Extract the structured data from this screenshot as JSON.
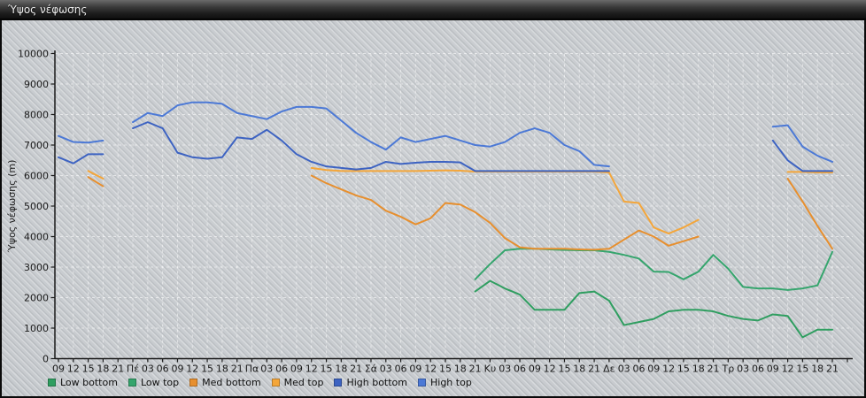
{
  "title": "Ύψος νέφωσης",
  "chart_data": {
    "type": "line",
    "title": "Ύψος νέφωσης",
    "ylabel": "Ύψος νέφωσης (m)",
    "ylim": [
      0,
      10000
    ],
    "ytick_step": 1000,
    "grid": true,
    "legend_position": "bottom-left",
    "x_labels": [
      "09",
      "12",
      "15",
      "18",
      "21",
      "Πέ",
      "03",
      "06",
      "09",
      "12",
      "15",
      "18",
      "21",
      "Πα",
      "03",
      "06",
      "09",
      "12",
      "15",
      "18",
      "21",
      "Σά",
      "03",
      "06",
      "09",
      "12",
      "15",
      "18",
      "21",
      "Κυ",
      "03",
      "06",
      "09",
      "12",
      "15",
      "18",
      "21",
      "Δε",
      "03",
      "06",
      "09",
      "12",
      "15",
      "18",
      "21",
      "Τρ",
      "03",
      "06",
      "09",
      "12",
      "15",
      "18",
      "21"
    ],
    "series": [
      {
        "name": "Low bottom",
        "color": "#2f9e60",
        "values": [
          null,
          null,
          null,
          null,
          null,
          null,
          null,
          null,
          null,
          null,
          null,
          null,
          null,
          null,
          null,
          null,
          null,
          null,
          null,
          null,
          null,
          null,
          null,
          null,
          null,
          null,
          null,
          null,
          2200,
          2550,
          2300,
          2100,
          1600,
          1600,
          1600,
          2150,
          2200,
          1900,
          1100,
          1200,
          1300,
          1550,
          1600,
          1600,
          1550,
          1400,
          1300,
          1250,
          1450,
          1400,
          700,
          950,
          950
        ]
      },
      {
        "name": "Low top",
        "color": "#35a56d",
        "values": [
          null,
          null,
          null,
          null,
          null,
          null,
          null,
          null,
          null,
          null,
          null,
          null,
          null,
          null,
          null,
          null,
          null,
          null,
          null,
          null,
          null,
          null,
          null,
          null,
          null,
          null,
          null,
          null,
          2600,
          3100,
          3550,
          3600,
          3600,
          3580,
          3560,
          3550,
          3550,
          3500,
          3400,
          3280,
          2850,
          2840,
          2600,
          2850,
          3400,
          2950,
          2350,
          2300,
          2300,
          2250,
          2300,
          2400,
          3500
        ]
      },
      {
        "name": "Med bottom",
        "color": "#e78f2e",
        "values": [
          null,
          null,
          5950,
          5650,
          null,
          null,
          null,
          null,
          null,
          null,
          null,
          null,
          null,
          null,
          null,
          null,
          null,
          6000,
          5750,
          5550,
          5350,
          5200,
          4850,
          4650,
          4400,
          4600,
          5100,
          5050,
          4800,
          4450,
          3950,
          3650,
          3600,
          3600,
          3600,
          3580,
          3570,
          3600,
          3900,
          4200,
          4000,
          3700,
          3850,
          4000,
          null,
          null,
          null,
          null,
          null,
          5900,
          5150,
          4350,
          3600
        ]
      },
      {
        "name": "Med top",
        "color": "#f4a63a",
        "values": [
          null,
          null,
          6150,
          5900,
          null,
          null,
          null,
          null,
          null,
          null,
          null,
          null,
          null,
          null,
          null,
          null,
          null,
          6250,
          6180,
          6150,
          6150,
          6150,
          6150,
          6150,
          6150,
          6160,
          6170,
          6160,
          6130,
          6130,
          6130,
          6130,
          6130,
          6130,
          6130,
          6130,
          6130,
          6100,
          5150,
          5100,
          4300,
          4100,
          4300,
          4550,
          null,
          null,
          null,
          null,
          null,
          6120,
          6120,
          6100,
          6100
        ]
      },
      {
        "name": "High bottom",
        "color": "#3d63c2",
        "values": [
          6600,
          6400,
          6700,
          6700,
          null,
          7550,
          7750,
          7550,
          6750,
          6600,
          6550,
          6600,
          7250,
          7200,
          7500,
          7150,
          6700,
          6450,
          6300,
          6250,
          6200,
          6250,
          6450,
          6380,
          6420,
          6450,
          6450,
          6430,
          6150,
          6150,
          6150,
          6150,
          6150,
          6150,
          6150,
          6150,
          6150,
          6150,
          null,
          null,
          null,
          null,
          null,
          null,
          null,
          null,
          null,
          null,
          7150,
          6500,
          6150,
          6150,
          6150
        ]
      },
      {
        "name": "High top",
        "color": "#4c79d6",
        "values": [
          7300,
          7100,
          7080,
          7150,
          null,
          7750,
          8050,
          7950,
          8300,
          8400,
          8400,
          8350,
          8050,
          7950,
          7850,
          8100,
          8250,
          8250,
          8200,
          7800,
          7400,
          7100,
          6850,
          7250,
          7100,
          7200,
          7300,
          7150,
          7000,
          6950,
          7100,
          7400,
          7550,
          7400,
          7000,
          6800,
          6350,
          6300,
          null,
          null,
          null,
          null,
          null,
          null,
          null,
          null,
          null,
          null,
          7600,
          7650,
          6950,
          6650,
          6450
        ]
      }
    ]
  }
}
